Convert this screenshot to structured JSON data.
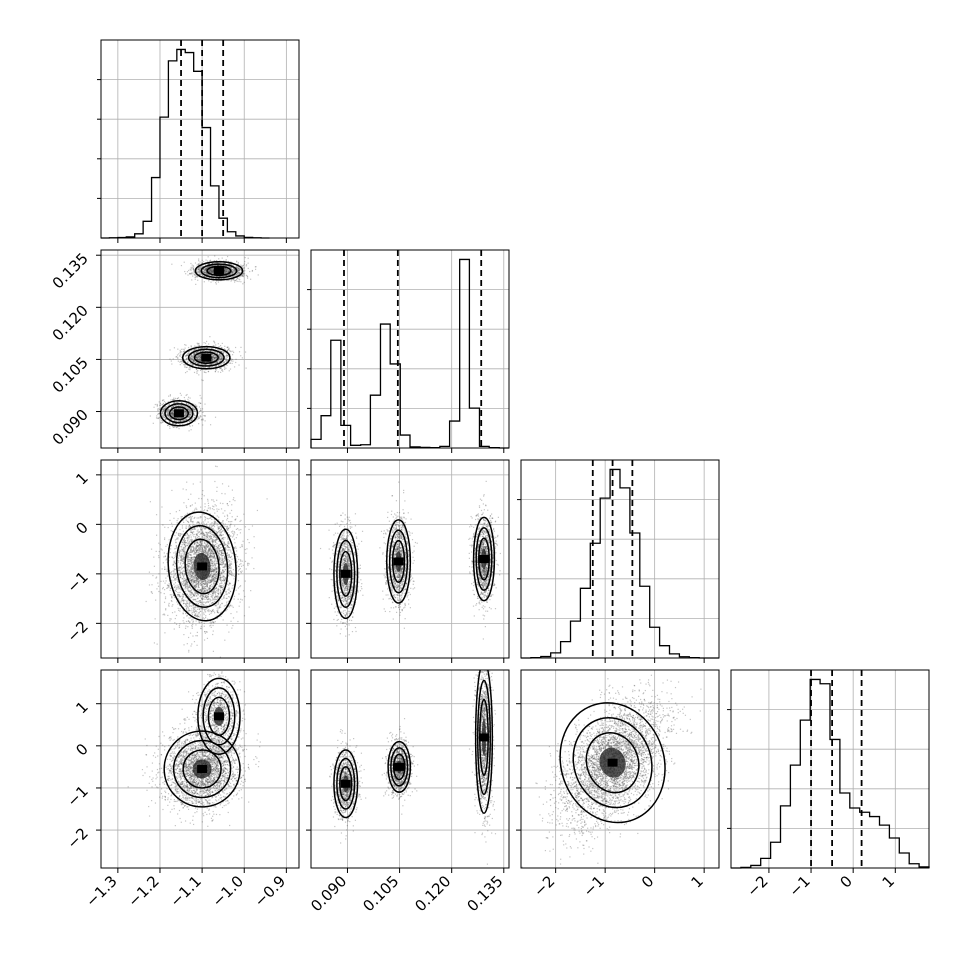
{
  "colors": {
    "axes": "#000000",
    "grid": "#b0b0b0",
    "scatter": "#555555",
    "fill_dark": "#202020",
    "fill_mid": "#707070",
    "fill_light": "#c8c8c8"
  },
  "chart_data": {
    "type": "corner",
    "parameters": [
      {
        "range": [
          -1.34,
          -0.87
        ],
        "ticks": [
          -1.3,
          -1.2,
          -1.1,
          -1.0,
          -0.9
        ],
        "tick_labels": [
          "−1.3",
          "−1.2",
          "−1.1",
          "−1.0",
          "−0.9"
        ]
      },
      {
        "range": [
          0.0795,
          0.1365
        ],
        "ticks": [
          0.09,
          0.105,
          0.12,
          0.135
        ],
        "tick_labels": [
          "0.090",
          "0.105",
          "0.120",
          "0.135"
        ]
      },
      {
        "range": [
          -2.7,
          1.3
        ],
        "ticks": [
          -2,
          -1,
          0,
          1
        ],
        "tick_labels": [
          "−2",
          "−1",
          "0",
          "1"
        ]
      },
      {
        "range": [
          -2.9,
          1.8
        ],
        "ticks": [
          -2,
          -1,
          0,
          1
        ],
        "tick_labels": [
          "−2",
          "−1",
          "0",
          "1"
        ]
      }
    ],
    "diagonal": [
      {
        "bin_edges": [
          -1.34,
          -1.32,
          -1.3,
          -1.28,
          -1.26,
          -1.24,
          -1.22,
          -1.2,
          -1.18,
          -1.16,
          -1.14,
          -1.12,
          -1.1,
          -1.08,
          -1.06,
          -1.04,
          -1.02,
          -1.0,
          -0.98,
          -0.96,
          -0.94
        ],
        "counts": [
          0,
          1,
          2,
          5,
          20,
          80,
          290,
          580,
          850,
          905,
          890,
          800,
          530,
          250,
          95,
          30,
          10,
          3,
          1,
          0
        ],
        "quantiles": [
          -1.15,
          -1.1,
          -1.05
        ]
      },
      {
        "bin_edges": [
          0.0795,
          0.0824,
          0.0852,
          0.0881,
          0.0909,
          0.0938,
          0.0966,
          0.0995,
          0.1023,
          0.1052,
          0.108,
          0.1109,
          0.1137,
          0.1166,
          0.1194,
          0.1223,
          0.1251,
          0.128,
          0.1308,
          0.1337,
          0.1365
        ],
        "counts": [
          80,
          300,
          1000,
          210,
          25,
          30,
          490,
          1150,
          780,
          120,
          10,
          5,
          3,
          15,
          250,
          1750,
          370,
          15,
          3,
          0
        ],
        "quantiles": [
          0.089,
          0.1045,
          0.1285
        ]
      },
      {
        "bin_edges": [
          -2.7,
          -2.5,
          -2.3,
          -2.1,
          -1.9,
          -1.7,
          -1.5,
          -1.3,
          -1.1,
          -0.9,
          -0.7,
          -0.5,
          -0.3,
          -0.1,
          0.1,
          0.3,
          0.5,
          0.7,
          0.9,
          1.1,
          1.3
        ],
        "counts": [
          0,
          2,
          7,
          25,
          80,
          180,
          340,
          560,
          780,
          920,
          830,
          610,
          350,
          150,
          60,
          20,
          6,
          2,
          0,
          0
        ],
        "quantiles": [
          -1.25,
          -0.85,
          -0.45
        ]
      },
      {
        "bin_edges": [
          -2.9,
          -2.665,
          -2.43,
          -2.195,
          -1.96,
          -1.725,
          -1.49,
          -1.255,
          -1.02,
          -0.785,
          -0.55,
          -0.315,
          -0.08,
          0.155,
          0.39,
          0.625,
          0.86,
          1.095,
          1.33,
          1.565,
          1.8
        ],
        "counts": [
          0,
          3,
          12,
          45,
          120,
          290,
          480,
          690,
          880,
          860,
          600,
          350,
          280,
          260,
          240,
          200,
          140,
          70,
          20,
          5
        ],
        "quantiles": [
          -1.0,
          -0.5,
          0.2
        ]
      }
    ],
    "pairs": [
      {
        "row": 1,
        "col": 0,
        "clusters": [
          {
            "cx": -1.06,
            "cy": 0.1305,
            "sx": 0.028,
            "sy": 0.0013,
            "rho": 0,
            "n": 1500
          },
          {
            "cx": -1.09,
            "cy": 0.1055,
            "sx": 0.028,
            "sy": 0.0016,
            "rho": 0,
            "n": 1300
          },
          {
            "cx": -1.155,
            "cy": 0.0895,
            "sx": 0.022,
            "sy": 0.0018,
            "rho": 0,
            "n": 1100
          }
        ]
      },
      {
        "row": 2,
        "col": 0,
        "clusters": [
          {
            "cx": -1.1,
            "cy": -0.85,
            "sx": 0.04,
            "sy": 0.55,
            "rho": 0.1,
            "n": 3600
          }
        ]
      },
      {
        "row": 2,
        "col": 1,
        "clusters": [
          {
            "cx": 0.0895,
            "cy": -1.0,
            "sx": 0.0017,
            "sy": 0.45,
            "rho": 0,
            "n": 1100
          },
          {
            "cx": 0.1047,
            "cy": -0.75,
            "sx": 0.0017,
            "sy": 0.42,
            "rho": 0,
            "n": 1300
          },
          {
            "cx": 0.1293,
            "cy": -0.7,
            "sx": 0.0015,
            "sy": 0.42,
            "rho": 0,
            "n": 1400
          }
        ]
      },
      {
        "row": 3,
        "col": 0,
        "clusters": [
          {
            "cx": -1.1,
            "cy": -0.55,
            "sx": 0.045,
            "sy": 0.45,
            "rho": 0.1,
            "n": 2800
          },
          {
            "cx": -1.06,
            "cy": 0.7,
            "sx": 0.025,
            "sy": 0.45,
            "rho": 0,
            "n": 900
          }
        ]
      },
      {
        "row": 3,
        "col": 1,
        "clusters": [
          {
            "cx": 0.0895,
            "cy": -0.9,
            "sx": 0.0017,
            "sy": 0.4,
            "rho": 0,
            "n": 1100
          },
          {
            "cx": 0.1049,
            "cy": -0.5,
            "sx": 0.0016,
            "sy": 0.3,
            "rho": 0,
            "n": 1300
          },
          {
            "cx": 0.1293,
            "cy": 0.2,
            "sx": 0.0012,
            "sy": 0.9,
            "rho": 0,
            "n": 1400
          }
        ]
      },
      {
        "row": 3,
        "col": 2,
        "clusters": [
          {
            "cx": -0.85,
            "cy": -0.4,
            "sx": 0.52,
            "sy": 0.72,
            "rho": 0.5,
            "n": 3800
          }
        ]
      }
    ],
    "contour_levels": [
      "1 sigma",
      "1.5 sigma",
      "2 sigma"
    ],
    "grid": true
  }
}
